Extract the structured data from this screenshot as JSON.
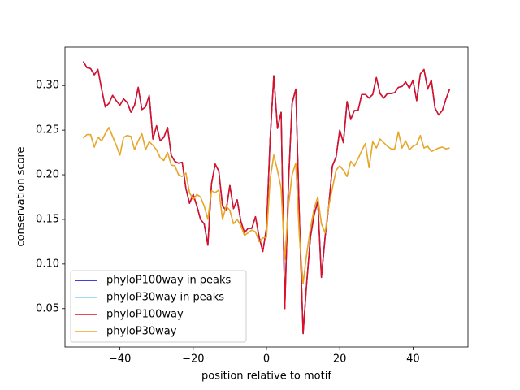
{
  "chart_data": {
    "type": "line",
    "xlabel": "position relative to motif",
    "ylabel": "conservation score",
    "x": [
      -50,
      -49,
      -48,
      -47,
      -46,
      -45,
      -44,
      -43,
      -42,
      -41,
      -40,
      -39,
      -38,
      -37,
      -36,
      -35,
      -34,
      -33,
      -32,
      -31,
      -30,
      -29,
      -28,
      -27,
      -26,
      -25,
      -24,
      -23,
      -22,
      -21,
      -20,
      -19,
      -18,
      -17,
      -16,
      -15,
      -14,
      -13,
      -12,
      -11,
      -10,
      -9,
      -8,
      -7,
      -6,
      -5,
      -4,
      -3,
      -2,
      -1,
      0,
      1,
      2,
      3,
      4,
      5,
      6,
      7,
      8,
      9,
      10,
      11,
      12,
      13,
      14,
      15,
      16,
      17,
      18,
      19,
      20,
      21,
      22,
      23,
      24,
      25,
      26,
      27,
      28,
      29,
      30,
      31,
      32,
      33,
      34,
      35,
      36,
      37,
      38,
      39,
      40,
      41,
      42,
      43,
      44,
      45,
      46,
      47,
      48,
      49,
      50
    ],
    "series": [
      {
        "name": "phyloP100way in peaks",
        "color": "#0000cd",
        "values": [
          0.327,
          0.32,
          0.319,
          0.312,
          0.318,
          0.296,
          0.276,
          0.28,
          0.289,
          0.283,
          0.278,
          0.285,
          0.281,
          0.27,
          0.278,
          0.298,
          0.273,
          0.276,
          0.289,
          0.24,
          0.255,
          0.238,
          0.242,
          0.253,
          0.222,
          0.215,
          0.213,
          0.214,
          0.185,
          0.168,
          0.178,
          0.165,
          0.15,
          0.145,
          0.121,
          0.19,
          0.212,
          0.204,
          0.165,
          0.16,
          0.188,
          0.162,
          0.172,
          0.148,
          0.135,
          0.14,
          0.14,
          0.153,
          0.13,
          0.114,
          0.14,
          0.24,
          0.311,
          0.252,
          0.27,
          0.05,
          0.19,
          0.28,
          0.296,
          0.15,
          0.022,
          0.08,
          0.13,
          0.155,
          0.17,
          0.085,
          0.13,
          0.165,
          0.21,
          0.22,
          0.25,
          0.236,
          0.282,
          0.262,
          0.272,
          0.272,
          0.29,
          0.29,
          0.286,
          0.29,
          0.309,
          0.291,
          0.286,
          0.291,
          0.291,
          0.292,
          0.298,
          0.299,
          0.304,
          0.297,
          0.306,
          0.283,
          0.313,
          0.318,
          0.296,
          0.306,
          0.275,
          0.267,
          0.272,
          0.285,
          0.296
        ]
      },
      {
        "name": "phyloP30way in peaks",
        "color": "#87ceeb",
        "values": [
          0.241,
          0.245,
          0.245,
          0.231,
          0.242,
          0.238,
          0.246,
          0.253,
          0.243,
          0.233,
          0.222,
          0.242,
          0.244,
          0.243,
          0.228,
          0.238,
          0.246,
          0.228,
          0.237,
          0.233,
          0.228,
          0.219,
          0.216,
          0.225,
          0.211,
          0.21,
          0.2,
          0.198,
          0.202,
          0.18,
          0.172,
          0.178,
          0.175,
          0.165,
          0.15,
          0.182,
          0.18,
          0.183,
          0.15,
          0.165,
          0.16,
          0.145,
          0.15,
          0.143,
          0.132,
          0.135,
          0.138,
          0.136,
          0.125,
          0.129,
          0.13,
          0.195,
          0.222,
          0.205,
          0.185,
          0.105,
          0.165,
          0.2,
          0.213,
          0.13,
          0.078,
          0.112,
          0.14,
          0.162,
          0.175,
          0.145,
          0.135,
          0.165,
          0.185,
          0.205,
          0.21,
          0.205,
          0.198,
          0.215,
          0.21,
          0.218,
          0.227,
          0.235,
          0.208,
          0.237,
          0.23,
          0.24,
          0.236,
          0.232,
          0.229,
          0.229,
          0.248,
          0.23,
          0.238,
          0.228,
          0.232,
          0.234,
          0.244,
          0.23,
          0.232,
          0.226,
          0.228,
          0.23,
          0.231,
          0.229,
          0.23
        ]
      },
      {
        "name": "phyloP100way",
        "color": "#e0101e",
        "values": [
          0.327,
          0.32,
          0.319,
          0.312,
          0.318,
          0.296,
          0.276,
          0.28,
          0.289,
          0.283,
          0.278,
          0.285,
          0.281,
          0.27,
          0.278,
          0.298,
          0.273,
          0.276,
          0.289,
          0.24,
          0.255,
          0.238,
          0.242,
          0.253,
          0.222,
          0.215,
          0.213,
          0.214,
          0.185,
          0.168,
          0.178,
          0.165,
          0.15,
          0.145,
          0.121,
          0.19,
          0.212,
          0.204,
          0.165,
          0.16,
          0.188,
          0.162,
          0.172,
          0.148,
          0.135,
          0.14,
          0.14,
          0.153,
          0.13,
          0.114,
          0.14,
          0.24,
          0.311,
          0.252,
          0.27,
          0.05,
          0.19,
          0.28,
          0.296,
          0.15,
          0.022,
          0.08,
          0.13,
          0.155,
          0.17,
          0.085,
          0.13,
          0.165,
          0.21,
          0.22,
          0.25,
          0.236,
          0.282,
          0.262,
          0.272,
          0.272,
          0.29,
          0.29,
          0.286,
          0.29,
          0.309,
          0.291,
          0.286,
          0.291,
          0.291,
          0.292,
          0.298,
          0.299,
          0.304,
          0.297,
          0.306,
          0.283,
          0.313,
          0.318,
          0.296,
          0.306,
          0.275,
          0.267,
          0.272,
          0.285,
          0.296
        ]
      },
      {
        "name": "phyloP30way",
        "color": "#f0a51e",
        "values": [
          0.241,
          0.245,
          0.245,
          0.231,
          0.242,
          0.238,
          0.246,
          0.253,
          0.243,
          0.233,
          0.222,
          0.242,
          0.244,
          0.243,
          0.228,
          0.238,
          0.246,
          0.228,
          0.237,
          0.233,
          0.228,
          0.219,
          0.216,
          0.225,
          0.211,
          0.21,
          0.2,
          0.198,
          0.202,
          0.18,
          0.172,
          0.178,
          0.175,
          0.165,
          0.15,
          0.182,
          0.18,
          0.183,
          0.15,
          0.165,
          0.16,
          0.145,
          0.15,
          0.143,
          0.132,
          0.135,
          0.138,
          0.136,
          0.125,
          0.129,
          0.13,
          0.195,
          0.222,
          0.205,
          0.185,
          0.105,
          0.165,
          0.2,
          0.213,
          0.13,
          0.078,
          0.112,
          0.14,
          0.162,
          0.175,
          0.145,
          0.135,
          0.165,
          0.185,
          0.205,
          0.21,
          0.205,
          0.198,
          0.215,
          0.21,
          0.218,
          0.227,
          0.235,
          0.208,
          0.237,
          0.23,
          0.24,
          0.236,
          0.232,
          0.229,
          0.229,
          0.248,
          0.23,
          0.238,
          0.228,
          0.232,
          0.234,
          0.244,
          0.23,
          0.232,
          0.226,
          0.228,
          0.23,
          0.231,
          0.229,
          0.23
        ]
      }
    ],
    "xlim": [
      -55,
      55
    ],
    "ylim": [
      0.007,
      0.343
    ],
    "xticks": [
      {
        "value": -40,
        "label": "−40"
      },
      {
        "value": -20,
        "label": "−20"
      },
      0,
      20,
      40
    ],
    "yticks": [
      {
        "value": 0.05,
        "label": "0.05"
      },
      {
        "value": 0.1,
        "label": "0.10"
      },
      {
        "value": 0.15,
        "label": "0.15"
      },
      {
        "value": 0.2,
        "label": "0.20"
      },
      {
        "value": 0.25,
        "label": "0.25"
      },
      {
        "value": 0.3,
        "label": "0.30"
      }
    ],
    "legend": "lower left"
  }
}
